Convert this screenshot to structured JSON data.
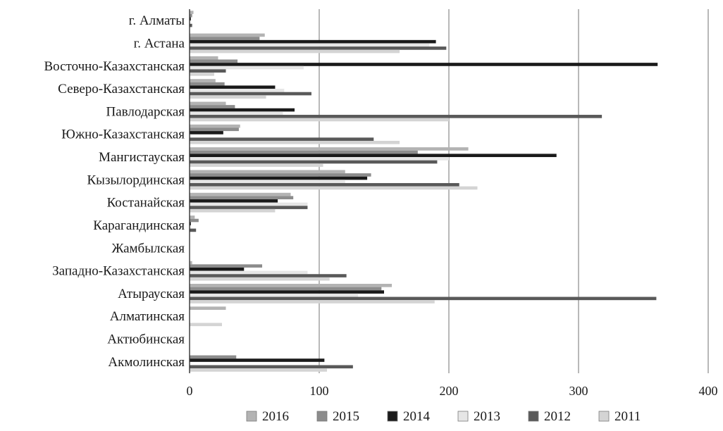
{
  "chart_data": {
    "type": "bar",
    "orientation": "horizontal",
    "title": "",
    "xlabel": "",
    "ylabel": "",
    "xlim": [
      0,
      400
    ],
    "xticks": [
      "0",
      "100",
      "200",
      "300",
      "400"
    ],
    "grid": "vertical",
    "legend_position": "bottom",
    "categories": [
      "г. Алматы",
      "г. Астана",
      "Восточно-Казахстанская",
      "Северо-Казахстанская",
      "Павлодарская",
      "Южно-Казахстанская",
      "Мангистауская",
      "Кызылординская",
      "Костанайская",
      "Карагандинская",
      "Жамбылская",
      "Западно-Казахстанская",
      "Атырауская",
      "Алматинская",
      "Актюбинская",
      "Акмолинская"
    ],
    "series": [
      {
        "name": "2016",
        "color": "#b3b3b3",
        "values": [
          3,
          58,
          22,
          20,
          28,
          39,
          215,
          120,
          78,
          4,
          0,
          2,
          156,
          28,
          0,
          0
        ]
      },
      {
        "name": "2015",
        "color": "#8c8c8c",
        "values": [
          2,
          54,
          37,
          27,
          35,
          38,
          176,
          140,
          80,
          7,
          0,
          56,
          148,
          0,
          0,
          36
        ]
      },
      {
        "name": "2014",
        "color": "#1a1a1a",
        "values": [
          1,
          190,
          361,
          66,
          81,
          26,
          283,
          137,
          68,
          1,
          0,
          42,
          150,
          0,
          0,
          104
        ]
      },
      {
        "name": "2013",
        "color": "#e6e6e6",
        "values": [
          0,
          185,
          88,
          73,
          72,
          1,
          200,
          120,
          91,
          1,
          0,
          91,
          130,
          0,
          0,
          0
        ]
      },
      {
        "name": "2012",
        "color": "#595959",
        "values": [
          2,
          198,
          28,
          94,
          318,
          142,
          191,
          208,
          91,
          5,
          0,
          121,
          360,
          0,
          0,
          126
        ]
      },
      {
        "name": "2011",
        "color": "#d4d4d4",
        "values": [
          0,
          162,
          19,
          59,
          200,
          162,
          103,
          222,
          66,
          0,
          0,
          108,
          189,
          25,
          0,
          106
        ]
      }
    ]
  }
}
